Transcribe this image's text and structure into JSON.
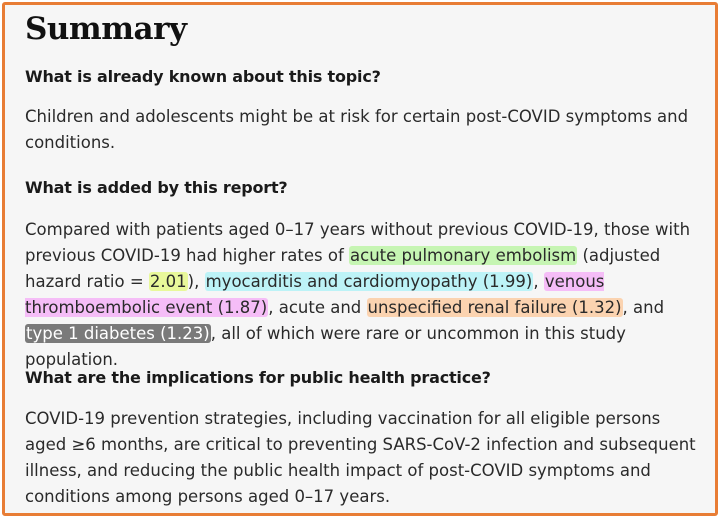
{
  "title": "Summary",
  "q1": "What is already known about this topic?",
  "a1": "Children and adolescents might be at risk for certain post-COVID symptoms and conditions.",
  "q2": "What is added by this report?",
  "a2": {
    "t1": "Compared with patients aged 0–17 years without previous COVID-19, those with previous COVID-19 had higher rates of ",
    "h1": "acute pulmonary embolism",
    "t2": " (adjusted hazard ratio = ",
    "h2": "2.01",
    "t3": "), ",
    "h3": "myocarditis and cardiomyopathy (1.99)",
    "t4": ", ",
    "h4": "venous thromboembolic event (1.87)",
    "t5": ", acute and ",
    "h5": "unspecified renal failure (1.32)",
    "t6": ", and ",
    "h6": "type 1 diabetes (1.23)",
    "t7": ", all of which were rare or uncommon in this study population."
  },
  "q3": "What are the implications for public health practice?",
  "a3": "COVID-19 prevention strategies, including vaccination for all eligible persons aged ≥6 months, are critical to preventing SARS-CoV-2 infection and subsequent illness, and reducing the public health impact of post-COVID symptoms and conditions among persons aged 0–17 years.",
  "colors": {
    "frame": "#e87d35",
    "green": "#c6f5b3",
    "yellow": "#e8f89a",
    "cyan": "#bdf3f7",
    "violet": "#f5bdf7",
    "orange": "#fbd3b0",
    "gray": "#7a7a7a"
  }
}
